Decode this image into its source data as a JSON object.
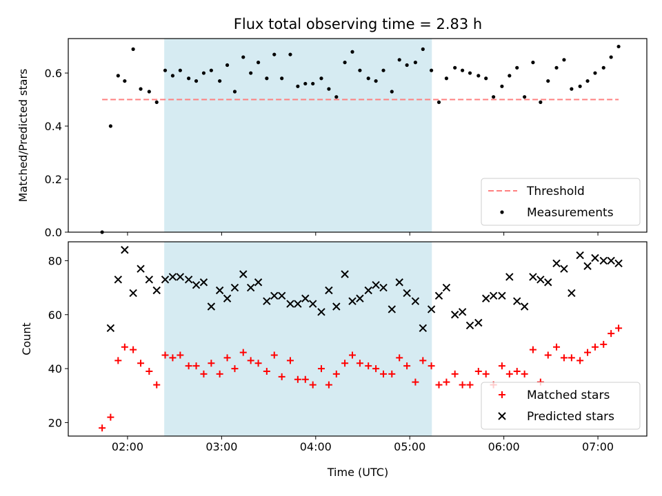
{
  "title": "Flux total observing time = 2.83 h",
  "xlabel": "Time (UTC)",
  "x_tick_labels": [
    "02:00",
    "03:00",
    "04:00",
    "05:00",
    "06:00",
    "07:00"
  ],
  "x_tick_hours": [
    2,
    3,
    4,
    5,
    6,
    7
  ],
  "x_range_hours": [
    1.37,
    7.52
  ],
  "observing_window_hours": [
    2.39,
    5.235
  ],
  "colors": {
    "window": "#add8e6",
    "threshold": "#ff7f7f",
    "measurements": "#000000",
    "matched": "#ff0000",
    "predicted": "#000000"
  },
  "chart_data": [
    {
      "type": "scatter",
      "ylabel": "Matched/Predicted stars",
      "ylim": [
        0,
        0.73
      ],
      "y_ticks": [
        "0.0",
        "0.2",
        "0.4",
        "0.6"
      ],
      "legend": [
        {
          "label": "Threshold",
          "marker": "dashed-line"
        },
        {
          "label": "Measurements",
          "marker": "dot"
        }
      ],
      "legend_position": "lower-right",
      "threshold": {
        "name": "Threshold",
        "value": 0.5,
        "x_start": 1.73,
        "x_end": 7.22
      },
      "series": [
        {
          "name": "Measurements",
          "x": [
            1.73,
            1.82,
            1.9,
            1.97,
            2.06,
            2.14,
            2.23,
            2.31,
            2.4,
            2.48,
            2.56,
            2.65,
            2.73,
            2.81,
            2.89,
            2.98,
            3.06,
            3.14,
            3.23,
            3.31,
            3.39,
            3.48,
            3.56,
            3.64,
            3.73,
            3.81,
            3.89,
            3.97,
            4.06,
            4.14,
            4.22,
            4.31,
            4.39,
            4.47,
            4.56,
            4.64,
            4.72,
            4.81,
            4.89,
            4.97,
            5.06,
            5.14,
            5.23,
            5.31,
            5.39,
            5.48,
            5.56,
            5.64,
            5.73,
            5.81,
            5.89,
            5.98,
            6.06,
            6.14,
            6.22,
            6.31,
            6.39,
            6.47,
            6.56,
            6.64,
            6.72,
            6.81,
            6.89,
            6.97,
            7.06,
            7.14,
            7.22
          ],
          "y": [
            0.0,
            0.4,
            0.59,
            0.57,
            0.69,
            0.54,
            0.53,
            0.49,
            0.61,
            0.59,
            0.61,
            0.58,
            0.57,
            0.6,
            0.61,
            0.57,
            0.63,
            0.53,
            0.66,
            0.6,
            0.64,
            0.58,
            0.67,
            0.58,
            0.67,
            0.55,
            0.56,
            0.56,
            0.58,
            0.54,
            0.51,
            0.64,
            0.68,
            0.61,
            0.58,
            0.57,
            0.61,
            0.53,
            0.65,
            0.63,
            0.64,
            0.69,
            0.61,
            0.49,
            0.58,
            0.62,
            0.61,
            0.6,
            0.59,
            0.58,
            0.51,
            0.55,
            0.59,
            0.62,
            0.51,
            0.64,
            0.49,
            0.57,
            0.62,
            0.65,
            0.54,
            0.55,
            0.57,
            0.6,
            0.62,
            0.66,
            0.7
          ]
        }
      ]
    },
    {
      "type": "scatter",
      "ylabel": "Count",
      "ylim": [
        15,
        87
      ],
      "y_ticks": [
        "20",
        "40",
        "60",
        "80"
      ],
      "legend": [
        {
          "label": "Matched stars",
          "marker": "plus"
        },
        {
          "label": "Predicted stars",
          "marker": "x"
        }
      ],
      "legend_position": "lower-right",
      "series": [
        {
          "name": "Matched stars",
          "x": [
            1.73,
            1.82,
            1.9,
            1.97,
            2.06,
            2.14,
            2.23,
            2.31,
            2.4,
            2.48,
            2.56,
            2.65,
            2.73,
            2.81,
            2.89,
            2.98,
            3.06,
            3.14,
            3.23,
            3.31,
            3.39,
            3.48,
            3.56,
            3.64,
            3.73,
            3.81,
            3.89,
            3.97,
            4.06,
            4.14,
            4.22,
            4.31,
            4.39,
            4.47,
            4.56,
            4.64,
            4.72,
            4.81,
            4.89,
            4.97,
            5.06,
            5.14,
            5.23,
            5.31,
            5.39,
            5.48,
            5.56,
            5.64,
            5.73,
            5.81,
            5.89,
            5.98,
            6.06,
            6.14,
            6.22,
            6.31,
            6.39,
            6.47,
            6.56,
            6.64,
            6.72,
            6.81,
            6.89,
            6.97,
            7.06,
            7.14,
            7.22
          ],
          "y": [
            18,
            22,
            43,
            48,
            47,
            42,
            39,
            34,
            45,
            44,
            45,
            41,
            41,
            38,
            42,
            38,
            44,
            40,
            46,
            43,
            42,
            39,
            45,
            37,
            43,
            36,
            36,
            34,
            40,
            34,
            38,
            42,
            45,
            42,
            41,
            40,
            38,
            38,
            44,
            41,
            35,
            43,
            41,
            34,
            35,
            38,
            34,
            34,
            39,
            38,
            34,
            41,
            38,
            39,
            38,
            47,
            35,
            45,
            48,
            44,
            44,
            43,
            46,
            48,
            49,
            53,
            55
          ]
        },
        {
          "name": "Predicted stars",
          "x": [
            1.82,
            1.9,
            1.97,
            2.06,
            2.14,
            2.23,
            2.31,
            2.4,
            2.48,
            2.56,
            2.65,
            2.73,
            2.81,
            2.89,
            2.98,
            3.06,
            3.14,
            3.23,
            3.31,
            3.39,
            3.48,
            3.56,
            3.64,
            3.73,
            3.81,
            3.89,
            3.97,
            4.06,
            4.14,
            4.22,
            4.31,
            4.39,
            4.47,
            4.56,
            4.64,
            4.72,
            4.81,
            4.89,
            4.97,
            5.06,
            5.14,
            5.23,
            5.31,
            5.39,
            5.48,
            5.56,
            5.64,
            5.73,
            5.81,
            5.89,
            5.98,
            6.06,
            6.14,
            6.22,
            6.31,
            6.39,
            6.47,
            6.56,
            6.64,
            6.72,
            6.81,
            6.89,
            6.97,
            7.06,
            7.14,
            7.22
          ],
          "y": [
            55,
            73,
            84,
            68,
            77,
            73,
            69,
            73,
            74,
            74,
            73,
            71,
            72,
            63,
            69,
            66,
            70,
            75,
            70,
            72,
            65,
            67,
            67,
            64,
            64,
            66,
            64,
            61,
            69,
            63,
            75,
            65,
            66,
            69,
            71,
            70,
            62,
            72,
            68,
            65,
            55,
            62,
            67,
            70,
            60,
            61,
            56,
            57,
            66,
            67,
            67,
            74,
            65,
            63,
            74,
            73,
            72,
            79,
            77,
            68,
            82,
            78,
            81,
            80,
            80,
            79
          ]
        }
      ]
    }
  ]
}
